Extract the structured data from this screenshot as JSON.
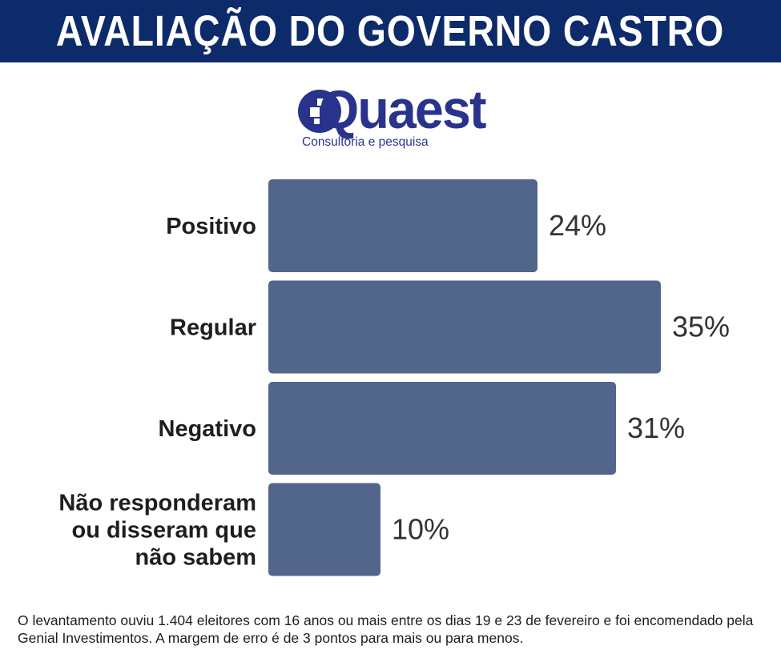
{
  "header": {
    "title": "AVALIAÇÃO DO GOVERNO CASTRO",
    "background_color": "#0d2b6b",
    "text_color": "#ffffff"
  },
  "logo": {
    "wordmark": "Quaest",
    "tagline": "Consultoria e pesquisa",
    "color": "#2a338c"
  },
  "chart_data": {
    "type": "bar",
    "orientation": "horizontal",
    "categories": [
      "Positivo",
      "Regular",
      "Negativo",
      "Não responderam ou disseram que não sabem"
    ],
    "category_lines": [
      [
        "Positivo"
      ],
      [
        "Regular"
      ],
      [
        "Negativo"
      ],
      [
        "Não responderam",
        "ou disseram que",
        "não sabem"
      ]
    ],
    "values": [
      24,
      35,
      31,
      10
    ],
    "value_labels": [
      "24%",
      "35%",
      "31%",
      "10%"
    ],
    "unit": "%",
    "bar_color": "#52658b",
    "grid": false,
    "legend": "none",
    "xlim": [
      0,
      35
    ]
  },
  "footnote": "O levantamento ouviu 1.404 eleitores com 16 anos ou mais entre os dias 19 e 23 de fevereiro e foi encomendado pela Genial Investimentos. A margem de erro é de 3 pontos para mais ou para menos."
}
